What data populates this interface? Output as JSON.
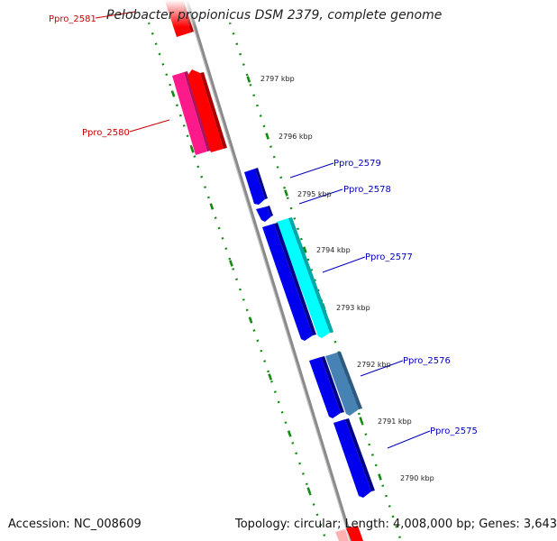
{
  "title": "Pelobacter propionicus DSM 2379, complete genome",
  "footer": {
    "accession": "Accession: NC_008609",
    "summary": "Topology: circular; Length: 4,008,000 bp; Genes: 3,643"
  },
  "colors": {
    "backbone": "#8c8c8c",
    "tick": "#138a13",
    "label_reverse": "#cc0000",
    "label_forward": "#0000bb",
    "gene_red": "#ff0000",
    "gene_pink": "#ff1a8c",
    "gene_blue": "#0000ee",
    "gene_cyan": "#00ffff",
    "gene_steel": "#4682b4"
  },
  "scale_labels": [
    "2797 kbp",
    "2796 kbp",
    "2795 kbp",
    "2794 kbp",
    "2793 kbp",
    "2792 kbp",
    "2791 kbp",
    "2790 kbp"
  ],
  "genes": [
    {
      "name": "Ppro_2581",
      "strand": "reverse",
      "color": "gene_red"
    },
    {
      "name": "Ppro_2580",
      "strand": "reverse",
      "color": "gene_pink"
    },
    {
      "name": "Ppro_2579",
      "strand": "forward",
      "color": "gene_blue"
    },
    {
      "name": "Ppro_2578",
      "strand": "forward",
      "color": "gene_blue"
    },
    {
      "name": "Ppro_2577",
      "strand": "forward",
      "color": "gene_cyan"
    },
    {
      "name": "Ppro_2576",
      "strand": "forward",
      "color": "gene_steel"
    },
    {
      "name": "Ppro_2575",
      "strand": "forward",
      "color": "gene_blue"
    }
  ]
}
